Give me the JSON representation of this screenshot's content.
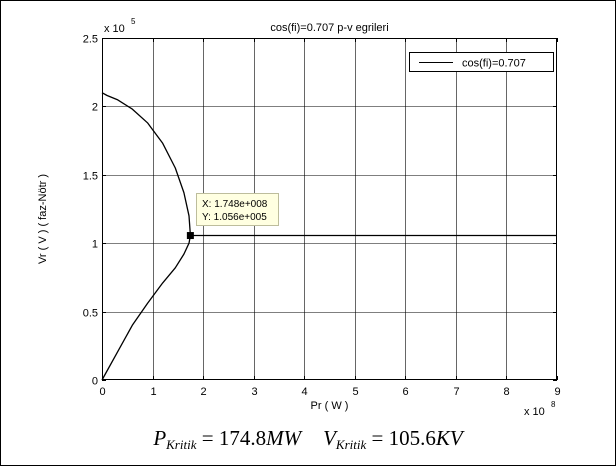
{
  "chart_data": {
    "type": "line",
    "title": "cos(fi)=0.707 p-v egrileri",
    "xlabel": "Pr  ( W )",
    "ylabel": "Vr ( V )   ( faz-Nötr )",
    "x_exponent": {
      "base": "x 10",
      "power": "8"
    },
    "y_exponent": {
      "base": "x 10",
      "power": "5"
    },
    "xlim": [
      0,
      9
    ],
    "ylim": [
      0,
      2.5
    ],
    "xticks": [
      "0",
      "1",
      "2",
      "3",
      "4",
      "5",
      "6",
      "7",
      "8",
      "9"
    ],
    "yticks": [
      "0",
      "0.5",
      "1",
      "1.5",
      "2",
      "2.5"
    ],
    "grid": true,
    "legend_position": "top-right",
    "series": [
      {
        "name": "cos(fi)=0.707",
        "color": "#000000",
        "x": [
          0,
          0.3,
          0.6,
          0.9,
          1.2,
          1.45,
          1.62,
          1.72,
          1.748,
          1.72,
          1.62,
          1.45,
          1.2,
          0.9,
          0.6,
          0.3,
          0.1,
          0
        ],
        "y": [
          0,
          0.2,
          0.4,
          0.56,
          0.71,
          0.82,
          0.92,
          1.0,
          1.056,
          1.2,
          1.37,
          1.55,
          1.73,
          1.88,
          1.98,
          2.05,
          2.08,
          2.1
        ]
      },
      {
        "name": "",
        "color": "#000000",
        "x": [
          1.748,
          9
        ],
        "y": [
          1.056,
          1.056
        ]
      }
    ],
    "datatip": {
      "x": 1.748,
      "y": 1.056,
      "line1": "X: 1.748e+008",
      "line2": "Y: 1.056e+005"
    }
  },
  "formula": {
    "p_symbol": "P",
    "p_sub": "Kritik",
    "p_value": " = 174.8",
    "p_unit": "MW",
    "v_symbol": "V",
    "v_sub": "Kritik",
    "v_value": " = 105.6",
    "v_unit": "KV"
  }
}
